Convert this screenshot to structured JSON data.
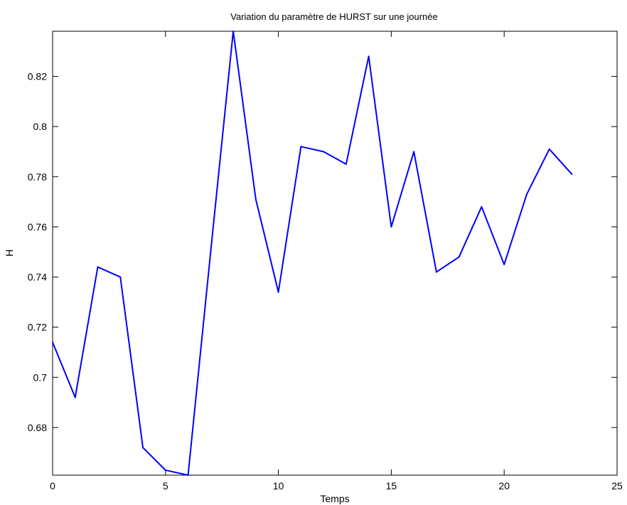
{
  "chart_data": {
    "type": "line",
    "title": "Variation du paramètre de HURST sur une journée",
    "xlabel": "Temps",
    "ylabel": "H",
    "xlim": [
      0,
      25
    ],
    "ylim": [
      0.661,
      0.838
    ],
    "xticks": [
      0,
      5,
      10,
      15,
      20,
      25
    ],
    "xtick_labels": [
      "0",
      "5",
      "10",
      "15",
      "20",
      "25"
    ],
    "yticks": [
      0.68,
      0.7,
      0.72,
      0.74,
      0.76,
      0.78,
      0.8,
      0.82
    ],
    "ytick_labels": [
      "0.68",
      "0.7",
      "0.72",
      "0.74",
      "0.76",
      "0.78",
      "0.8",
      "0.82"
    ],
    "grid": false,
    "series": [
      {
        "color": "#0000ff",
        "x": [
          0,
          1,
          2,
          3,
          4,
          5,
          6,
          7,
          8,
          9,
          10,
          11,
          12,
          13,
          14,
          15,
          16,
          17,
          18,
          19,
          20,
          21,
          22,
          23
        ],
        "y": [
          0.714,
          0.692,
          0.744,
          0.74,
          0.672,
          0.663,
          0.661,
          0.75,
          0.838,
          0.771,
          0.734,
          0.792,
          0.79,
          0.785,
          0.828,
          0.76,
          0.79,
          0.742,
          0.748,
          0.768,
          0.745,
          0.773,
          0.791,
          0.781
        ]
      }
    ]
  }
}
